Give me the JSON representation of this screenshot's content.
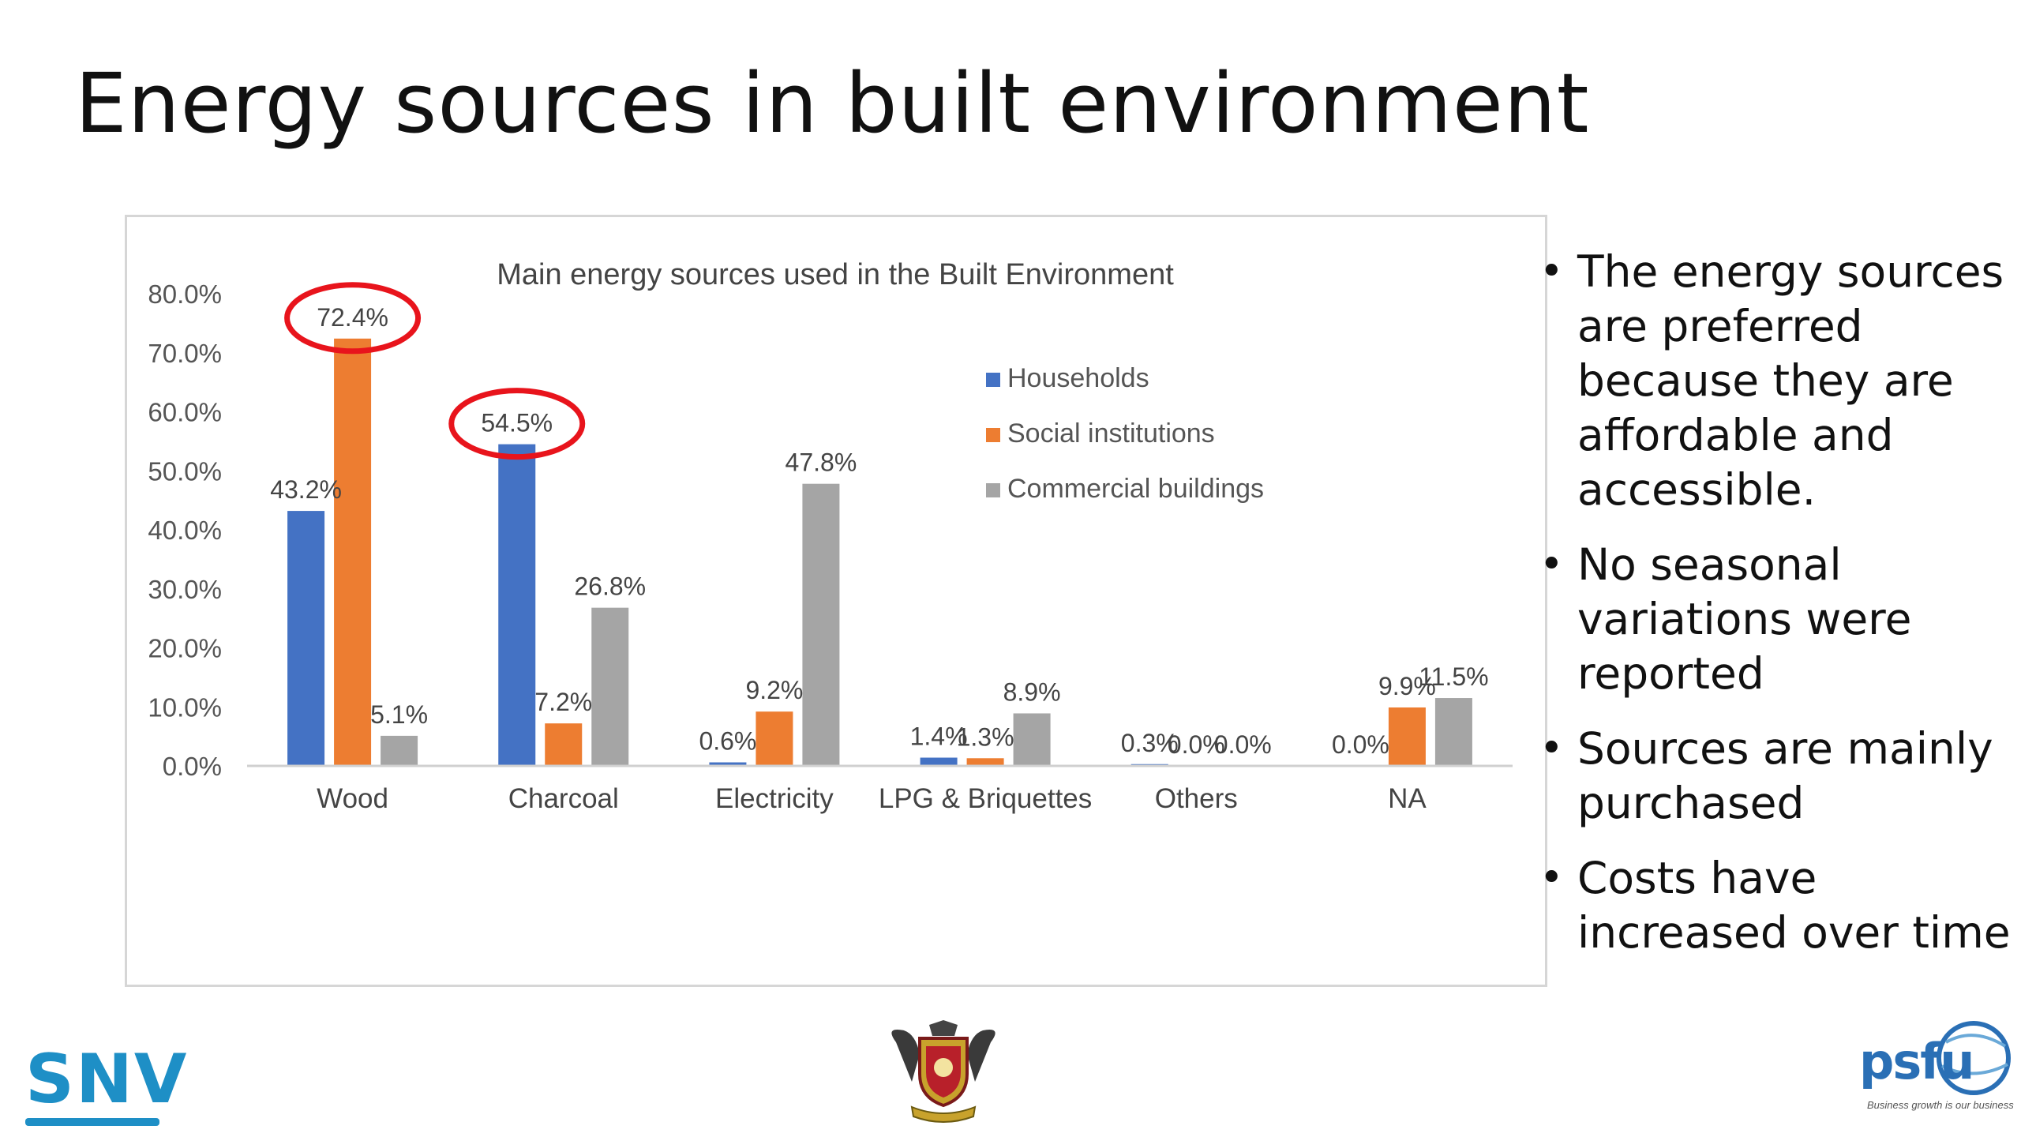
{
  "slide": {
    "title": "Energy sources in built environment",
    "bullets": [
      "The energy sources are preferred because they are affordable and accessible.",
      "No seasonal variations were reported",
      "Sources are mainly purchased",
      "Costs have increased over time"
    ]
  },
  "logos": {
    "snv": {
      "text": "SNV",
      "color": "#1e8fc6"
    },
    "crest": {
      "icon": "university-crest-icon"
    },
    "psfu": {
      "text": "psfu",
      "tagline": "Business growth is our business",
      "color": "#2a6fb5"
    }
  },
  "chart_data": {
    "type": "bar",
    "title": "Main energy sources used in the Built Environment",
    "xlabel": "",
    "ylabel": "",
    "categories": [
      "Wood",
      "Charcoal",
      "Electricity",
      "LPG & Briquettes",
      "Others",
      "NA"
    ],
    "series": [
      {
        "name": "Households",
        "color": "#4472c4",
        "values": [
          43.2,
          54.5,
          0.6,
          1.4,
          0.3,
          0.0
        ],
        "labels": [
          "43.2%",
          "54.5%",
          "0.6%",
          "1.4%",
          "0.3%",
          "0.0%"
        ]
      },
      {
        "name": "Social institutions",
        "color": "#ed7d31",
        "values": [
          72.4,
          7.2,
          9.2,
          1.3,
          0.0,
          9.9
        ],
        "labels": [
          "72.4%",
          "7.2%",
          "9.2%",
          "1.3%",
          "0.0%",
          "9.9%"
        ]
      },
      {
        "name": "Commercial buildings",
        "color": "#a5a5a5",
        "values": [
          5.1,
          26.8,
          47.8,
          8.9,
          0.0,
          11.5
        ],
        "labels": [
          "5.1%",
          "26.8%",
          "47.8%",
          "8.9%",
          "0.0%",
          "11.5%"
        ]
      }
    ],
    "yticks": [
      "0.0%",
      "10.0%",
      "20.0%",
      "30.0%",
      "40.0%",
      "50.0%",
      "60.0%",
      "70.0%",
      "80.0%"
    ],
    "ylim": [
      0,
      80
    ],
    "grid": false,
    "legend_position": "top-right",
    "highlight_color": "#e8141c",
    "highlights": [
      {
        "series": 1,
        "category": 0
      },
      {
        "series": 0,
        "category": 1
      }
    ]
  }
}
